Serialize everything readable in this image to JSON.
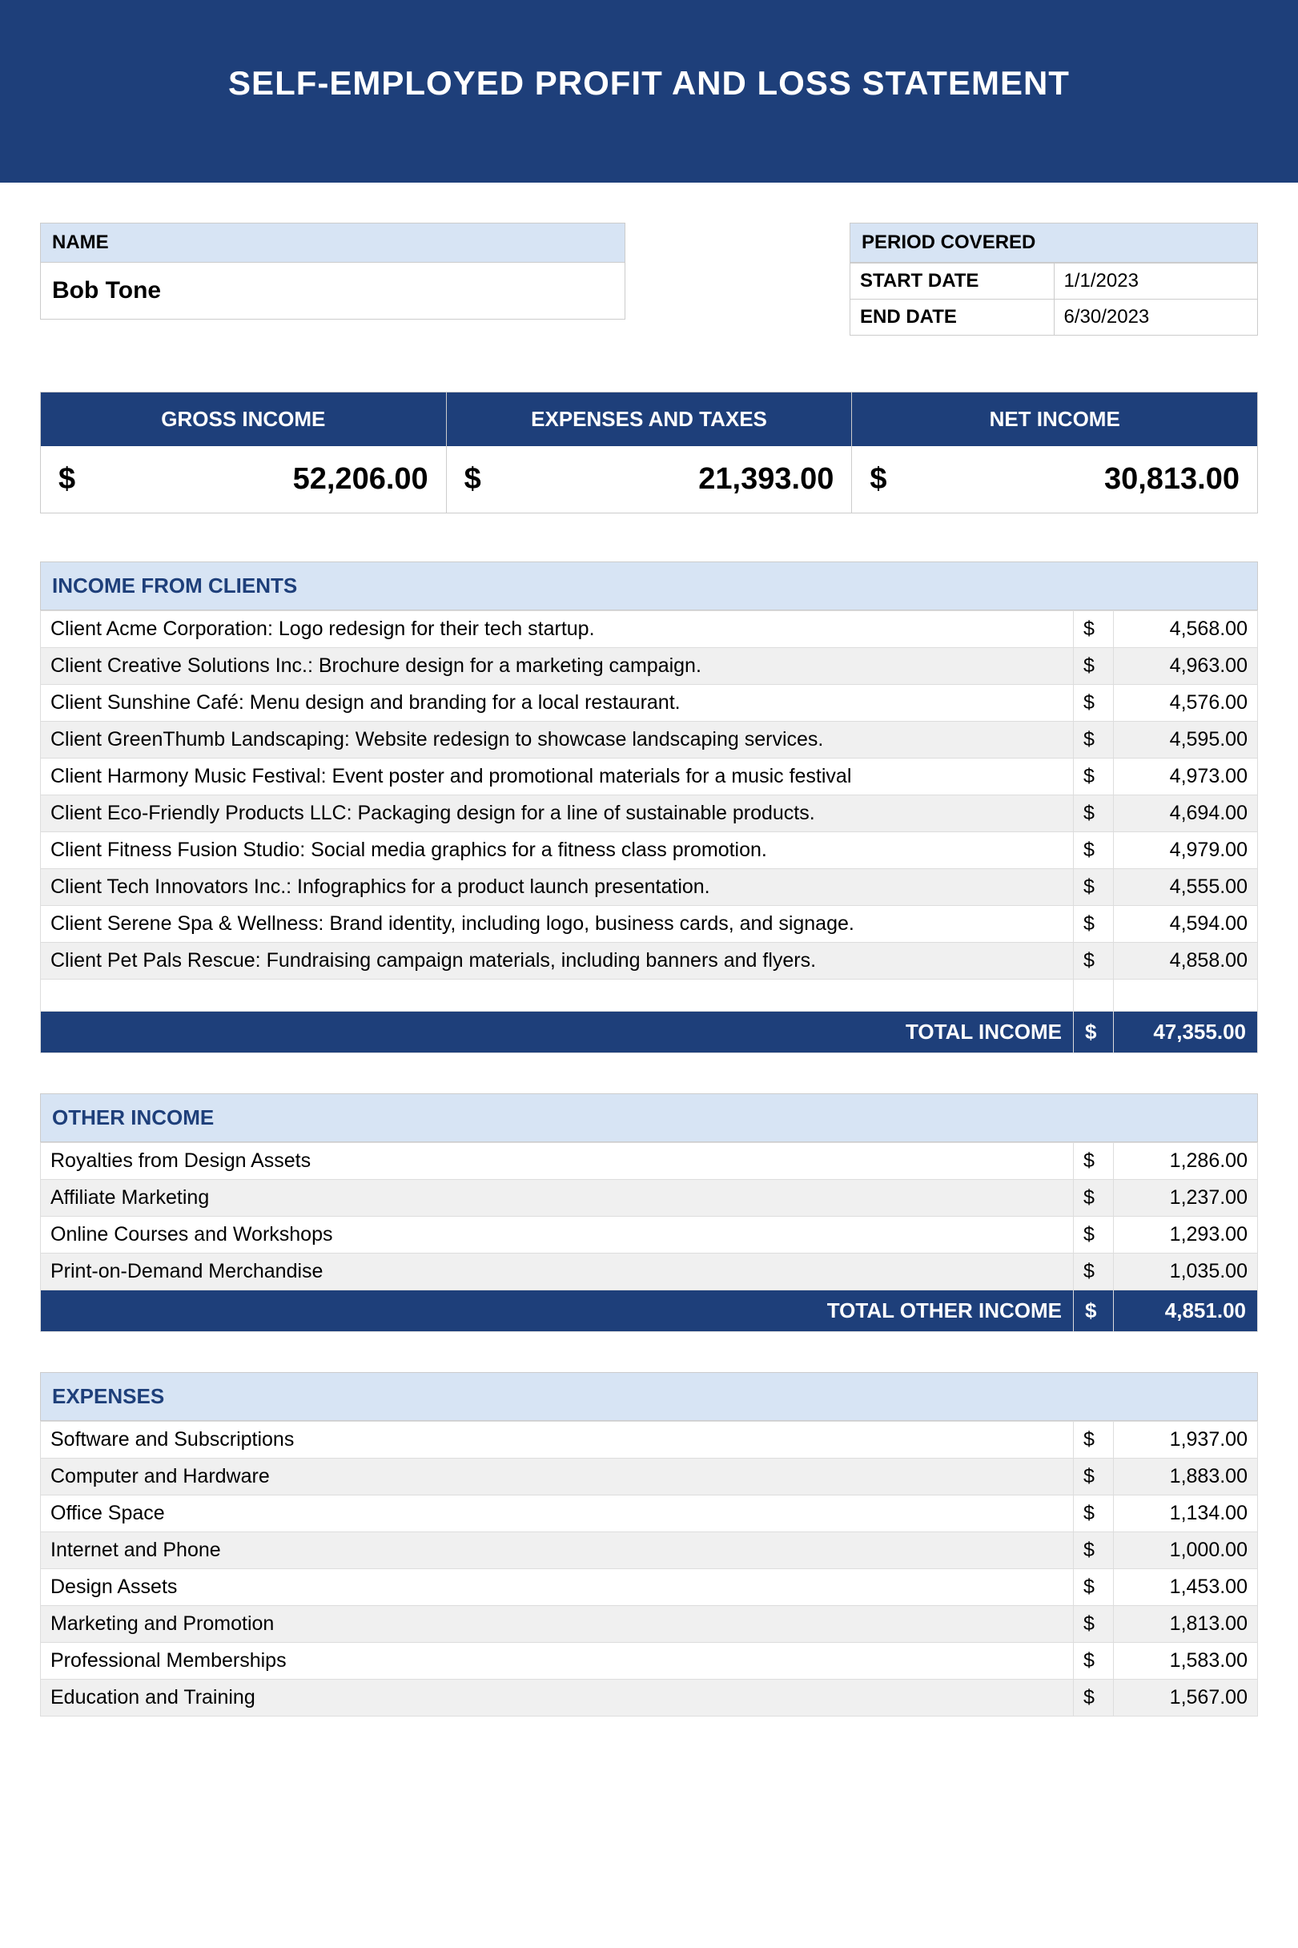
{
  "title": "SELF-EMPLOYED PROFIT AND LOSS STATEMENT",
  "name_section": {
    "header": "NAME",
    "value": "Bob Tone"
  },
  "period_section": {
    "header": "PERIOD COVERED",
    "start_label": "START DATE",
    "start_value": "1/1/2023",
    "end_label": "END DATE",
    "end_value": "6/30/2023"
  },
  "summary": {
    "gross_label": "GROSS INCOME",
    "gross_value": "52,206.00",
    "expenses_label": "EXPENSES AND TAXES",
    "expenses_value": "21,393.00",
    "net_label": "NET INCOME",
    "net_value": "30,813.00",
    "currency": "$"
  },
  "income_clients": {
    "header": "INCOME FROM CLIENTS",
    "rows": [
      {
        "desc": "Client Acme Corporation: Logo redesign for their tech startup.",
        "amt": "4,568.00"
      },
      {
        "desc": "Client Creative Solutions Inc.: Brochure design for a marketing campaign.",
        "amt": "4,963.00"
      },
      {
        "desc": "Client Sunshine Café: Menu design and branding for a local restaurant.",
        "amt": "4,576.00"
      },
      {
        "desc": "Client GreenThumb Landscaping: Website redesign to showcase landscaping services.",
        "amt": "4,595.00"
      },
      {
        "desc": "Client Harmony Music Festival: Event poster and promotional materials for a music festival",
        "amt": "4,973.00"
      },
      {
        "desc": "Client Eco-Friendly Products LLC: Packaging design for a line of sustainable products.",
        "amt": "4,694.00"
      },
      {
        "desc": "Client Fitness Fusion Studio: Social media graphics for a fitness class promotion.",
        "amt": "4,979.00"
      },
      {
        "desc": "Client Tech Innovators Inc.: Infographics for a product launch presentation.",
        "amt": "4,555.00"
      },
      {
        "desc": "Client Serene Spa & Wellness: Brand identity, including logo, business cards, and signage.",
        "amt": "4,594.00"
      },
      {
        "desc": "Client Pet Pals Rescue: Fundraising campaign materials, including banners and flyers.",
        "amt": "4,858.00"
      }
    ],
    "total_label": "TOTAL INCOME",
    "total_value": "47,355.00"
  },
  "other_income": {
    "header": "OTHER INCOME",
    "rows": [
      {
        "desc": "Royalties from Design Assets",
        "amt": "1,286.00"
      },
      {
        "desc": "Affiliate Marketing",
        "amt": "1,237.00"
      },
      {
        "desc": "Online Courses and Workshops",
        "amt": "1,293.00"
      },
      {
        "desc": "Print-on-Demand Merchandise",
        "amt": "1,035.00"
      }
    ],
    "total_label": "TOTAL OTHER INCOME",
    "total_value": "4,851.00"
  },
  "expenses": {
    "header": "EXPENSES",
    "rows": [
      {
        "desc": "Software and Subscriptions",
        "amt": "1,937.00"
      },
      {
        "desc": "Computer and Hardware",
        "amt": "1,883.00"
      },
      {
        "desc": "Office Space",
        "amt": "1,134.00"
      },
      {
        "desc": "Internet and Phone",
        "amt": "1,000.00"
      },
      {
        "desc": "Design Assets",
        "amt": "1,453.00"
      },
      {
        "desc": "Marketing and Promotion",
        "amt": "1,813.00"
      },
      {
        "desc": "Professional Memberships",
        "amt": "1,583.00"
      },
      {
        "desc": "Education and Training",
        "amt": "1,567.00"
      }
    ]
  },
  "colors": {
    "header_bg": "#1e3f7a",
    "light_blue": "#d7e4f4",
    "alt_row": "#f0f0f0",
    "border": "#cccccc"
  }
}
